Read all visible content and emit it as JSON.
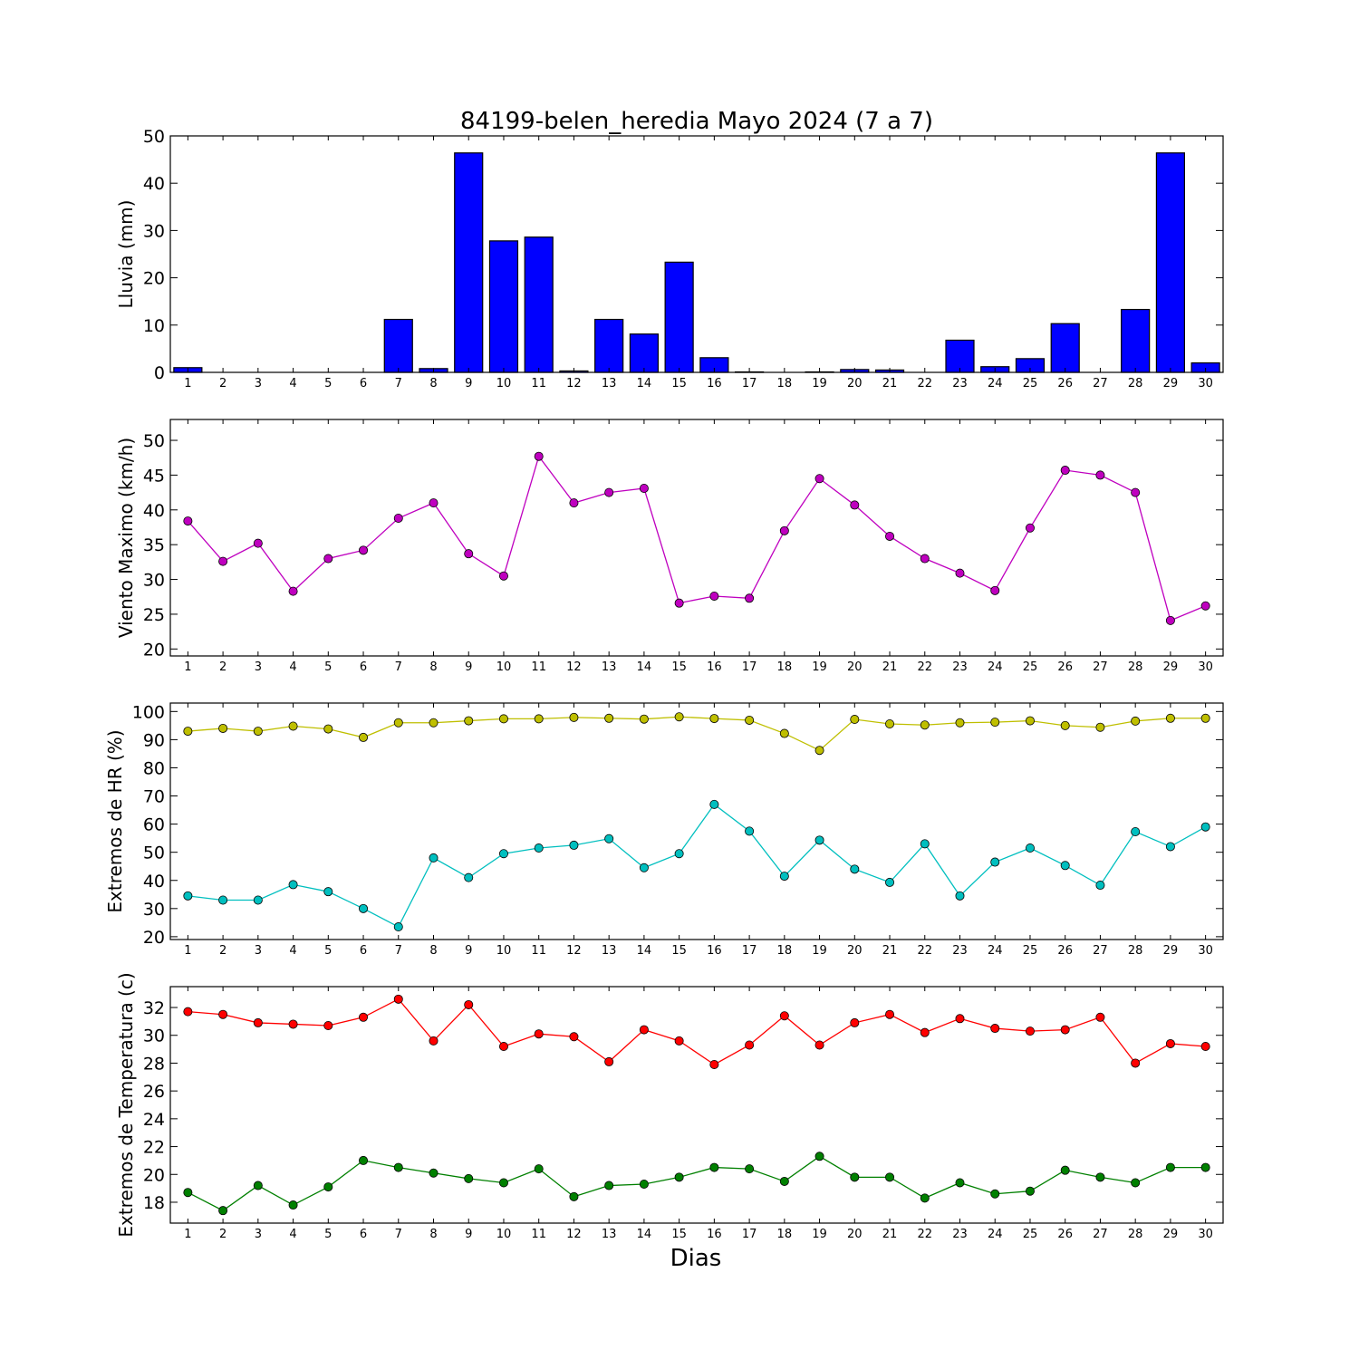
{
  "figure": {
    "title": "84199-belen_heredia Mayo 2024  (7 a 7)",
    "xlabel": "Dias"
  },
  "chart_data": [
    {
      "type": "bar",
      "ylabel": "Lluvia (mm)",
      "ylim": [
        0,
        50
      ],
      "yticks": [
        0,
        10,
        20,
        30,
        40,
        50
      ],
      "categories": [
        "1",
        "2",
        "3",
        "4",
        "5",
        "6",
        "7",
        "8",
        "9",
        "10",
        "11",
        "12",
        "13",
        "14",
        "15",
        "16",
        "17",
        "18",
        "19",
        "20",
        "21",
        "22",
        "23",
        "24",
        "25",
        "26",
        "27",
        "28",
        "29",
        "30"
      ],
      "values": [
        1.0,
        0,
        0,
        0,
        0,
        0,
        11.2,
        0.8,
        46.4,
        27.8,
        28.6,
        0.3,
        11.2,
        8.1,
        23.3,
        3.1,
        0.1,
        0,
        0.1,
        0.6,
        0.5,
        0,
        6.8,
        1.2,
        2.9,
        10.3,
        0,
        13.3,
        46.4,
        2.0
      ],
      "color": "#0000ff"
    },
    {
      "type": "line",
      "ylabel": "Viento Maximo (km/h)",
      "ylim": [
        19,
        53
      ],
      "yticks": [
        20,
        25,
        30,
        35,
        40,
        45,
        50
      ],
      "categories": [
        "1",
        "2",
        "3",
        "4",
        "5",
        "6",
        "7",
        "8",
        "9",
        "10",
        "11",
        "12",
        "13",
        "14",
        "15",
        "16",
        "17",
        "18",
        "19",
        "20",
        "21",
        "22",
        "23",
        "24",
        "25",
        "26",
        "27",
        "28",
        "29",
        "30"
      ],
      "series": [
        {
          "values": [
            38.4,
            32.6,
            35.2,
            28.3,
            33.0,
            34.2,
            38.8,
            41.0,
            33.7,
            30.5,
            47.7,
            41.0,
            42.5,
            43.1,
            26.6,
            27.6,
            27.3,
            37.0,
            44.5,
            40.7,
            36.2,
            33.0,
            30.9,
            28.4,
            37.4,
            45.7,
            45.0,
            42.5,
            24.1,
            26.2
          ],
          "color": "#bf00bf"
        }
      ]
    },
    {
      "type": "line",
      "ylabel": "Extremos de HR (%)",
      "ylim": [
        19,
        103
      ],
      "yticks": [
        20,
        30,
        40,
        50,
        60,
        70,
        80,
        90,
        100
      ],
      "categories": [
        "1",
        "2",
        "3",
        "4",
        "5",
        "6",
        "7",
        "8",
        "9",
        "10",
        "11",
        "12",
        "13",
        "14",
        "15",
        "16",
        "17",
        "18",
        "19",
        "20",
        "21",
        "22",
        "23",
        "24",
        "25",
        "26",
        "27",
        "28",
        "29",
        "30"
      ],
      "series": [
        {
          "values": [
            93,
            94,
            93,
            94.8,
            93.8,
            90.8,
            96,
            96,
            96.7,
            97.4,
            97.4,
            97.9,
            97.6,
            97.3,
            98.1,
            97.5,
            96.9,
            92.2,
            86.2,
            97.2,
            95.6,
            95.2,
            96,
            96.2,
            96.7,
            95,
            94.4,
            96.6,
            97.6,
            97.6
          ],
          "color": "#bfbf00"
        },
        {
          "values": [
            34.5,
            33,
            33,
            38.5,
            36,
            30,
            23.5,
            48,
            41,
            49.5,
            51.5,
            52.5,
            54.8,
            44.5,
            49.5,
            67,
            57.5,
            41.5,
            54.3,
            44,
            39.3,
            53,
            34.5,
            46.5,
            51.5,
            45.3,
            38.3,
            57.3,
            52,
            59
          ],
          "color": "#00bfbf"
        }
      ]
    },
    {
      "type": "line",
      "ylabel": "Extremos de Temperatura (c)",
      "ylim": [
        16.5,
        33.5
      ],
      "yticks": [
        18,
        20,
        22,
        24,
        26,
        28,
        30,
        32
      ],
      "categories": [
        "1",
        "2",
        "3",
        "4",
        "5",
        "6",
        "7",
        "8",
        "9",
        "10",
        "11",
        "12",
        "13",
        "14",
        "15",
        "16",
        "17",
        "18",
        "19",
        "20",
        "21",
        "22",
        "23",
        "24",
        "25",
        "26",
        "27",
        "28",
        "29",
        "30"
      ],
      "series": [
        {
          "values": [
            31.7,
            31.5,
            30.9,
            30.8,
            30.7,
            31.3,
            32.6,
            29.6,
            32.2,
            29.2,
            30.1,
            29.9,
            28.1,
            30.4,
            29.6,
            27.9,
            29.3,
            31.4,
            29.3,
            30.9,
            31.5,
            30.2,
            31.2,
            30.5,
            30.3,
            30.4,
            31.3,
            28.0,
            29.4,
            29.2
          ],
          "color": "#ff0000"
        },
        {
          "values": [
            18.7,
            17.4,
            19.2,
            17.8,
            19.1,
            21.0,
            20.5,
            20.1,
            19.7,
            19.4,
            20.4,
            18.4,
            19.2,
            19.3,
            19.8,
            20.5,
            20.4,
            19.5,
            21.3,
            19.8,
            19.8,
            18.3,
            19.4,
            18.6,
            18.8,
            20.3,
            19.8,
            19.4,
            20.5,
            20.5
          ],
          "color": "#008000"
        }
      ]
    }
  ]
}
